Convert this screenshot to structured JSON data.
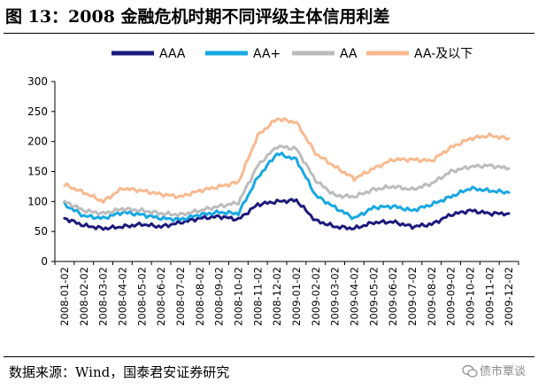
{
  "figure": {
    "title": "图 13：2008 金融危机时期不同评级主体信用利差",
    "source": "数据来源：Wind，国泰君安证券研究",
    "watermark": "债市覃谈"
  },
  "chart_data": {
    "type": "line",
    "title": "",
    "xlabel": "",
    "ylabel": "",
    "ylim": [
      0,
      300
    ],
    "yticks": [
      0,
      50,
      100,
      150,
      200,
      250,
      300
    ],
    "grid": false,
    "legend_position": "top",
    "x_tick_labels": [
      "2008-01-02",
      "2008-02-02",
      "2008-03-02",
      "2008-04-02",
      "2008-05-02",
      "2008-06-02",
      "2008-07-02",
      "2008-08-02",
      "2008-09-02",
      "2008-10-02",
      "2008-11-02",
      "2008-12-02",
      "2009-01-02",
      "2009-02-02",
      "2009-03-02",
      "2009-04-02",
      "2009-05-02",
      "2009-06-02",
      "2009-07-02",
      "2009-08-02",
      "2009-09-02",
      "2009-10-02",
      "2009-11-02",
      "2009-12-02"
    ],
    "x": [
      "2008-01",
      "2008-02",
      "2008-03",
      "2008-04",
      "2008-05",
      "2008-06",
      "2008-07",
      "2008-08",
      "2008-09",
      "2008-10",
      "2008-11",
      "2008-12",
      "2009-01",
      "2009-02",
      "2009-03",
      "2009-04",
      "2009-05",
      "2009-06",
      "2009-07",
      "2009-08",
      "2009-09",
      "2009-10",
      "2009-11",
      "2009-12"
    ],
    "series": [
      {
        "name": "AAA",
        "color": "#1c1a7c",
        "values": [
          72,
          60,
          55,
          58,
          62,
          58,
          65,
          72,
          75,
          70,
          95,
          100,
          102,
          68,
          58,
          55,
          65,
          66,
          58,
          62,
          78,
          85,
          80,
          80
        ]
      },
      {
        "name": "AA+",
        "color": "#17a8e3",
        "values": [
          95,
          76,
          72,
          82,
          78,
          72,
          70,
          78,
          82,
          80,
          140,
          180,
          170,
          110,
          90,
          72,
          90,
          92,
          85,
          95,
          108,
          122,
          118,
          115
        ]
      },
      {
        "name": "AA",
        "color": "#bcbcbc",
        "values": [
          100,
          85,
          80,
          88,
          85,
          80,
          78,
          85,
          92,
          98,
          160,
          192,
          188,
          135,
          110,
          108,
          120,
          125,
          120,
          130,
          150,
          158,
          160,
          155
        ]
      },
      {
        "name": "AA-及以下",
        "color": "#f8b98f",
        "values": [
          128,
          115,
          100,
          122,
          118,
          112,
          108,
          118,
          125,
          132,
          210,
          238,
          232,
          180,
          158,
          138,
          155,
          170,
          170,
          168,
          190,
          205,
          210,
          205
        ]
      }
    ]
  }
}
